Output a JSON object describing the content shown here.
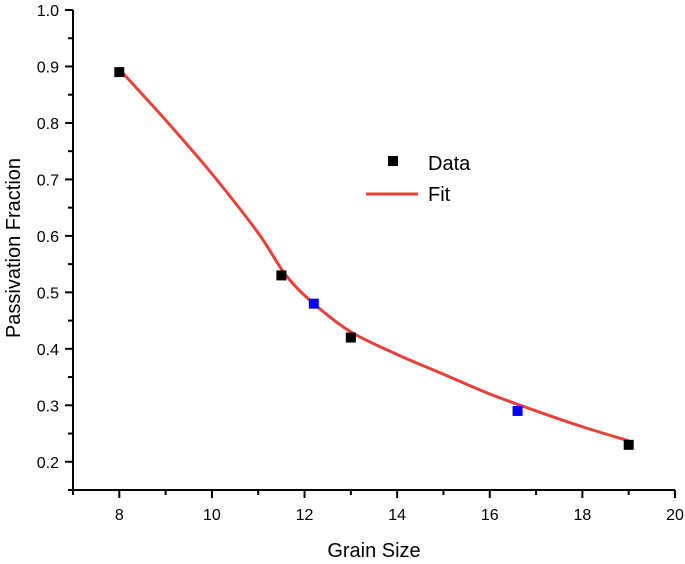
{
  "chart_data": {
    "type": "scatter",
    "xlabel": "Grain Size",
    "ylabel": "Passivation Fraction",
    "xlim": [
      7,
      20
    ],
    "ylim": [
      0.15,
      1.0
    ],
    "x_ticks": [
      "8",
      "10",
      "12",
      "14",
      "16",
      "18",
      "20"
    ],
    "y_ticks": [
      "0.2",
      "0.3",
      "0.4",
      "0.5",
      "0.6",
      "0.7",
      "0.8",
      "0.9",
      "1.0"
    ],
    "grid": false,
    "legend_position": "upper-right",
    "series": [
      {
        "name": "Data",
        "kind": "scatter",
        "marker": "square",
        "points": [
          {
            "x": 8.0,
            "y": 0.89,
            "color": "#000000"
          },
          {
            "x": 11.5,
            "y": 0.53,
            "color": "#000000"
          },
          {
            "x": 12.2,
            "y": 0.48,
            "color": "#0000ff"
          },
          {
            "x": 13.0,
            "y": 0.42,
            "color": "#000000"
          },
          {
            "x": 16.6,
            "y": 0.29,
            "color": "#0000ff"
          },
          {
            "x": 19.0,
            "y": 0.23,
            "color": "#000000"
          }
        ]
      },
      {
        "name": "Fit",
        "kind": "line",
        "color": "#e8403a",
        "points": [
          {
            "x": 8.0,
            "y": 0.895
          },
          {
            "x": 9.0,
            "y": 0.805
          },
          {
            "x": 10.0,
            "y": 0.71
          },
          {
            "x": 11.0,
            "y": 0.605
          },
          {
            "x": 11.6,
            "y": 0.53
          },
          {
            "x": 12.2,
            "y": 0.48
          },
          {
            "x": 13.0,
            "y": 0.43
          },
          {
            "x": 14.0,
            "y": 0.39
          },
          {
            "x": 15.0,
            "y": 0.355
          },
          {
            "x": 16.0,
            "y": 0.32
          },
          {
            "x": 17.0,
            "y": 0.29
          },
          {
            "x": 18.0,
            "y": 0.262
          },
          {
            "x": 19.0,
            "y": 0.237
          }
        ]
      }
    ]
  }
}
